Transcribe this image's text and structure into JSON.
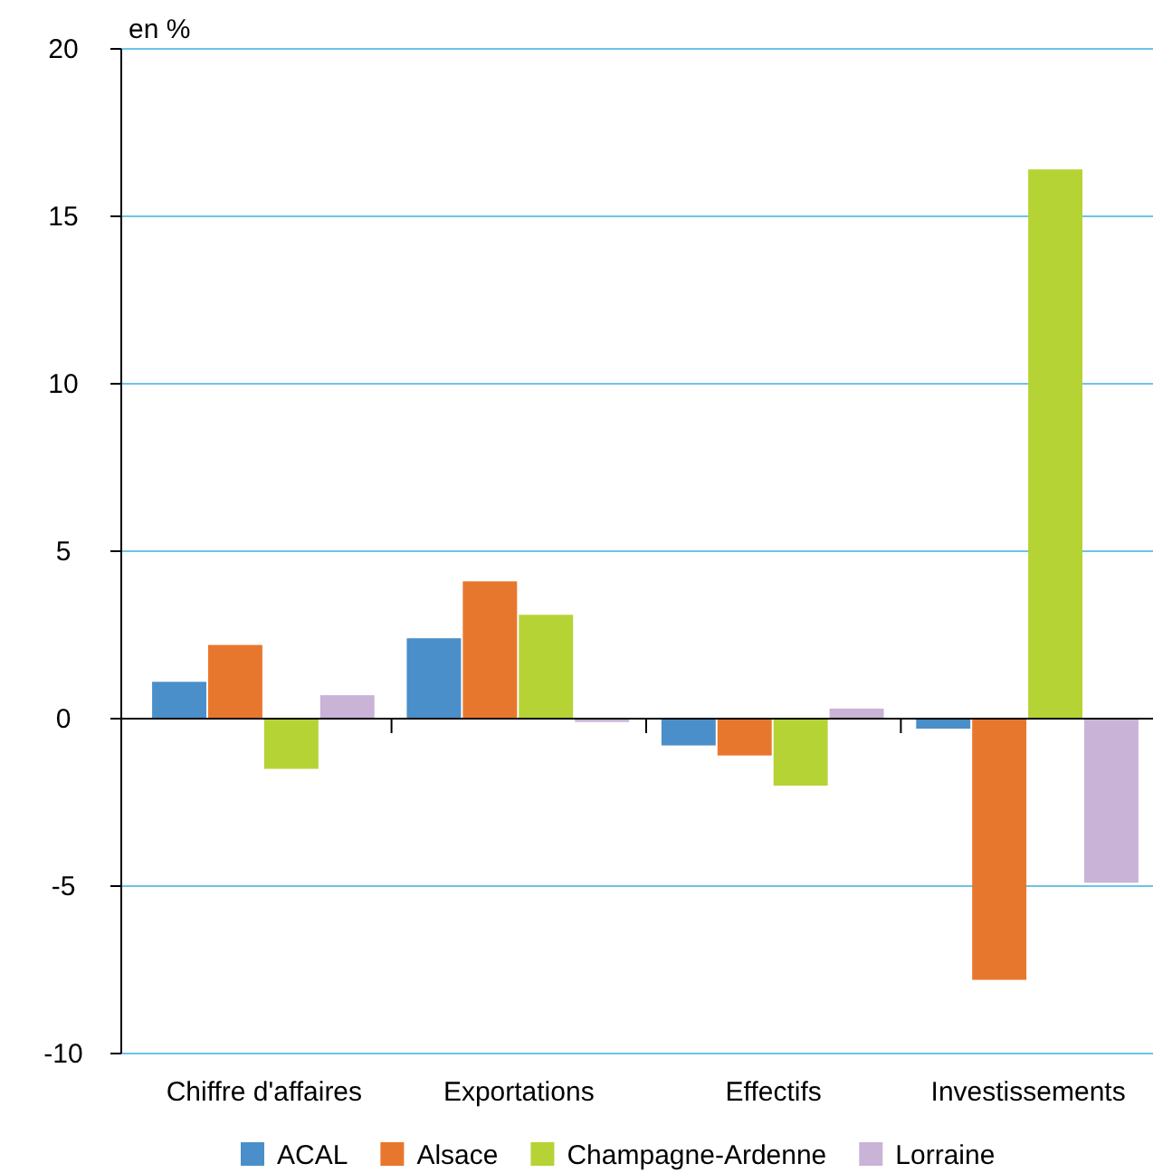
{
  "chart_data": {
    "type": "bar",
    "ylabel": "en %",
    "categories": [
      "Chiffre d'affaires",
      "Exportations",
      "Effectifs",
      "Investissements"
    ],
    "series": [
      {
        "name": "ACAL",
        "color": "#4a8fc9",
        "values": [
          1.1,
          2.4,
          -0.8,
          -0.3
        ]
      },
      {
        "name": "Alsace",
        "color": "#e8772e",
        "values": [
          2.2,
          4.1,
          -1.1,
          -7.8
        ]
      },
      {
        "name": "Champagne-Ardenne",
        "color": "#b5d334",
        "values": [
          -1.5,
          3.1,
          -2.0,
          16.4
        ]
      },
      {
        "name": "Lorraine",
        "color": "#c9b3d6",
        "values": [
          0.7,
          -0.1,
          0.3,
          -4.9
        ]
      }
    ],
    "ylim": [
      -10,
      20
    ],
    "yticks": [
      -10,
      -5,
      0,
      5,
      10,
      15,
      20
    ],
    "grid": "y",
    "legend": "bottom"
  }
}
